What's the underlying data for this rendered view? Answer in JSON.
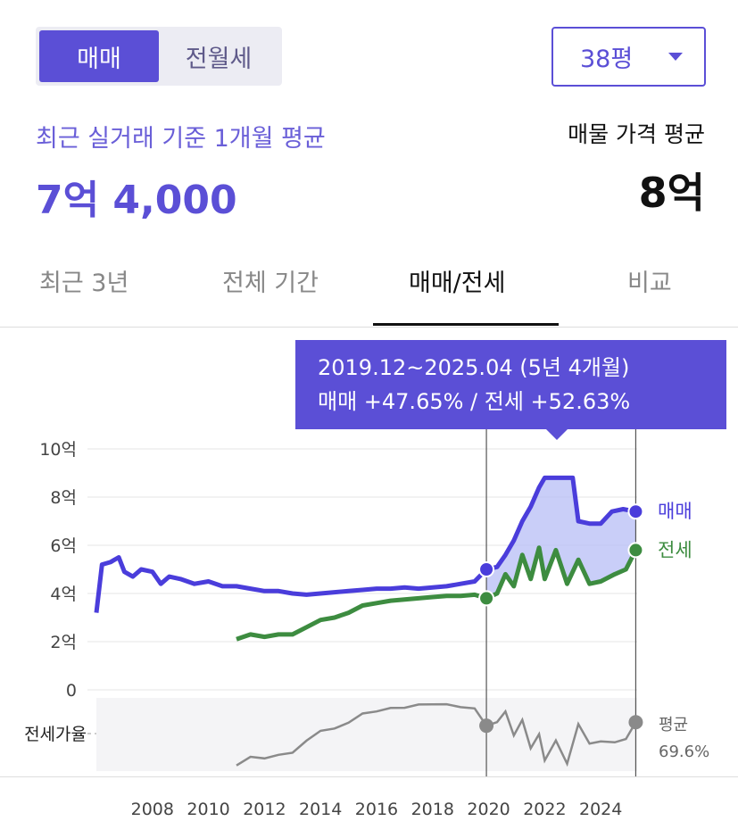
{
  "trade_toggle": {
    "options": [
      "매매",
      "전월세"
    ],
    "selected": "매매"
  },
  "size_select": {
    "value": "38평"
  },
  "summary": {
    "recent_label": "최근 실거래 기준 1개월 평균",
    "recent_value": "7억 4,000",
    "listing_label": "매물 가격 평균",
    "listing_value": "8억"
  },
  "tabs": [
    {
      "label": "최근 3년",
      "active": false
    },
    {
      "label": "전체 기간",
      "active": false
    },
    {
      "label": "매매/전세",
      "active": true
    },
    {
      "label": "비교",
      "active": false
    }
  ],
  "tooltip": {
    "period": "2019.12~2025.04 (5년 4개월)",
    "change": "매매 +47.65%  /  전세 +52.63%"
  },
  "chart_data": {
    "type": "line",
    "y_unit": "억",
    "ylim": [
      0,
      10
    ],
    "y_ticks": [
      "10억",
      "8억",
      "6억",
      "4억",
      "2억",
      "0"
    ],
    "x_ticks": [
      "2008",
      "2010",
      "2012",
      "2014",
      "2016",
      "2018",
      "2020",
      "2022",
      "2024"
    ],
    "series": [
      {
        "name": "매매",
        "color": "#4a3ddb",
        "points": [
          [
            2006.0,
            3.2
          ],
          [
            2006.2,
            5.2
          ],
          [
            2006.5,
            5.3
          ],
          [
            2006.8,
            5.5
          ],
          [
            2007.0,
            4.9
          ],
          [
            2007.3,
            4.7
          ],
          [
            2007.6,
            5.0
          ],
          [
            2008.0,
            4.9
          ],
          [
            2008.3,
            4.4
          ],
          [
            2008.6,
            4.7
          ],
          [
            2009.0,
            4.6
          ],
          [
            2009.5,
            4.4
          ],
          [
            2010.0,
            4.5
          ],
          [
            2010.5,
            4.3
          ],
          [
            2011.0,
            4.3
          ],
          [
            2011.5,
            4.2
          ],
          [
            2012.0,
            4.1
          ],
          [
            2012.5,
            4.1
          ],
          [
            2013.0,
            4.0
          ],
          [
            2013.5,
            3.95
          ],
          [
            2014.0,
            4.0
          ],
          [
            2014.5,
            4.05
          ],
          [
            2015.0,
            4.1
          ],
          [
            2015.5,
            4.15
          ],
          [
            2016.0,
            4.2
          ],
          [
            2016.5,
            4.2
          ],
          [
            2017.0,
            4.25
          ],
          [
            2017.5,
            4.2
          ],
          [
            2018.0,
            4.25
          ],
          [
            2018.5,
            4.3
          ],
          [
            2019.0,
            4.4
          ],
          [
            2019.5,
            4.5
          ],
          [
            2019.92,
            5.0
          ],
          [
            2020.3,
            5.1
          ],
          [
            2020.6,
            5.6
          ],
          [
            2020.9,
            6.2
          ],
          [
            2021.2,
            7.0
          ],
          [
            2021.5,
            7.6
          ],
          [
            2021.8,
            8.4
          ],
          [
            2022.0,
            8.8
          ],
          [
            2022.5,
            8.8
          ],
          [
            2023.0,
            8.8
          ],
          [
            2023.2,
            7.0
          ],
          [
            2023.6,
            6.9
          ],
          [
            2024.0,
            6.9
          ],
          [
            2024.4,
            7.4
          ],
          [
            2024.8,
            7.5
          ],
          [
            2025.25,
            7.4
          ]
        ]
      },
      {
        "name": "전세",
        "color": "#3d8c40",
        "points": [
          [
            2011.0,
            2.1
          ],
          [
            2011.5,
            2.3
          ],
          [
            2012.0,
            2.2
          ],
          [
            2012.5,
            2.3
          ],
          [
            2013.0,
            2.3
          ],
          [
            2013.5,
            2.6
          ],
          [
            2014.0,
            2.9
          ],
          [
            2014.5,
            3.0
          ],
          [
            2015.0,
            3.2
          ],
          [
            2015.5,
            3.5
          ],
          [
            2016.0,
            3.6
          ],
          [
            2016.5,
            3.7
          ],
          [
            2017.0,
            3.75
          ],
          [
            2017.5,
            3.8
          ],
          [
            2018.0,
            3.85
          ],
          [
            2018.5,
            3.9
          ],
          [
            2019.0,
            3.9
          ],
          [
            2019.5,
            3.95
          ],
          [
            2019.92,
            3.8
          ],
          [
            2020.3,
            4.0
          ],
          [
            2020.6,
            4.8
          ],
          [
            2020.9,
            4.3
          ],
          [
            2021.2,
            5.6
          ],
          [
            2021.5,
            4.6
          ],
          [
            2021.8,
            5.9
          ],
          [
            2022.0,
            4.6
          ],
          [
            2022.4,
            5.8
          ],
          [
            2022.8,
            4.4
          ],
          [
            2023.2,
            5.4
          ],
          [
            2023.6,
            4.4
          ],
          [
            2024.0,
            4.5
          ],
          [
            2024.5,
            4.8
          ],
          [
            2024.9,
            5.0
          ],
          [
            2025.25,
            5.8
          ]
        ]
      }
    ],
    "jeonse_ratio": {
      "label": "전세가율",
      "legend": "평균",
      "average_label": "69.6%"
    },
    "selection": {
      "start": 2019.92,
      "end": 2025.25
    },
    "end_labels": [
      "매매",
      "전세"
    ]
  }
}
